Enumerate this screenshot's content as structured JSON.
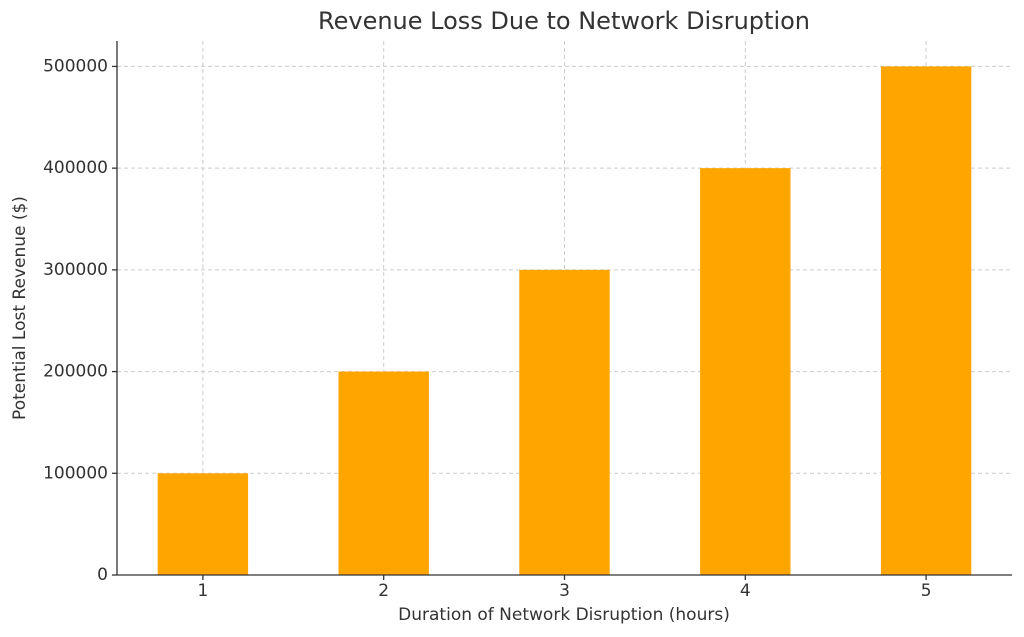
{
  "chart_data": {
    "type": "bar",
    "title": "Revenue Loss Due to Network Disruption",
    "x_label": "Duration of Network Disruption (hours)",
    "y_label": "Potential Lost Revenue ($)",
    "x": [
      1,
      2,
      3,
      4,
      5
    ],
    "values": [
      100000,
      200000,
      300000,
      400000,
      500000
    ],
    "color": "#ffa500",
    "xlim": [
      0.525,
      5.475
    ],
    "xticks": [
      1,
      2,
      3,
      4,
      5
    ],
    "ylim": [
      0,
      525000
    ],
    "yticks": [
      0,
      100000,
      200000,
      300000,
      400000,
      500000
    ],
    "grid": true
  }
}
